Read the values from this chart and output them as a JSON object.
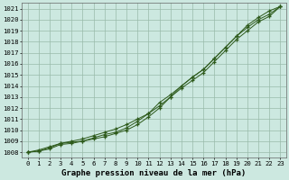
{
  "x": [
    0,
    1,
    2,
    3,
    4,
    5,
    6,
    7,
    8,
    9,
    10,
    11,
    12,
    13,
    14,
    15,
    16,
    17,
    18,
    19,
    20,
    21,
    22,
    23
  ],
  "line1": [
    1008.0,
    1008.2,
    1008.5,
    1008.8,
    1009.0,
    1009.2,
    1009.5,
    1009.8,
    1010.1,
    1010.5,
    1011.0,
    1011.5,
    1012.2,
    1013.0,
    1014.0,
    1014.8,
    1015.5,
    1016.5,
    1017.5,
    1018.5,
    1019.5,
    1020.2,
    1020.8,
    1021.2
  ],
  "line2": [
    1008.0,
    1008.1,
    1008.4,
    1008.8,
    1008.9,
    1009.0,
    1009.3,
    1009.6,
    1009.8,
    1010.2,
    1010.8,
    1011.5,
    1012.5,
    1013.2,
    1014.0,
    1014.8,
    1015.5,
    1016.5,
    1017.5,
    1018.5,
    1019.3,
    1020.0,
    1020.5,
    1021.2
  ],
  "line3": [
    1008.0,
    1008.1,
    1008.3,
    1008.7,
    1008.8,
    1009.0,
    1009.2,
    1009.4,
    1009.7,
    1010.0,
    1010.5,
    1011.2,
    1012.0,
    1013.0,
    1013.8,
    1014.5,
    1015.2,
    1016.2,
    1017.2,
    1018.2,
    1019.0,
    1019.8,
    1020.3,
    1021.2
  ],
  "ylim_min": 1007.5,
  "ylim_max": 1021.5,
  "yticks": [
    1008,
    1009,
    1010,
    1011,
    1012,
    1013,
    1014,
    1015,
    1016,
    1017,
    1018,
    1019,
    1020,
    1021
  ],
  "xticks": [
    0,
    1,
    2,
    3,
    4,
    5,
    6,
    7,
    8,
    9,
    10,
    11,
    12,
    13,
    14,
    15,
    16,
    17,
    18,
    19,
    20,
    21,
    22,
    23
  ],
  "xlabel": "Graphe pression niveau de la mer (hPa)",
  "line_color": "#2d5a1b",
  "bg_color": "#cce8e0",
  "grid_color": "#99bbaa",
  "xlabel_fontsize": 6.5,
  "tick_fontsize": 5.2,
  "fig_width": 3.2,
  "fig_height": 2.0,
  "dpi": 100
}
